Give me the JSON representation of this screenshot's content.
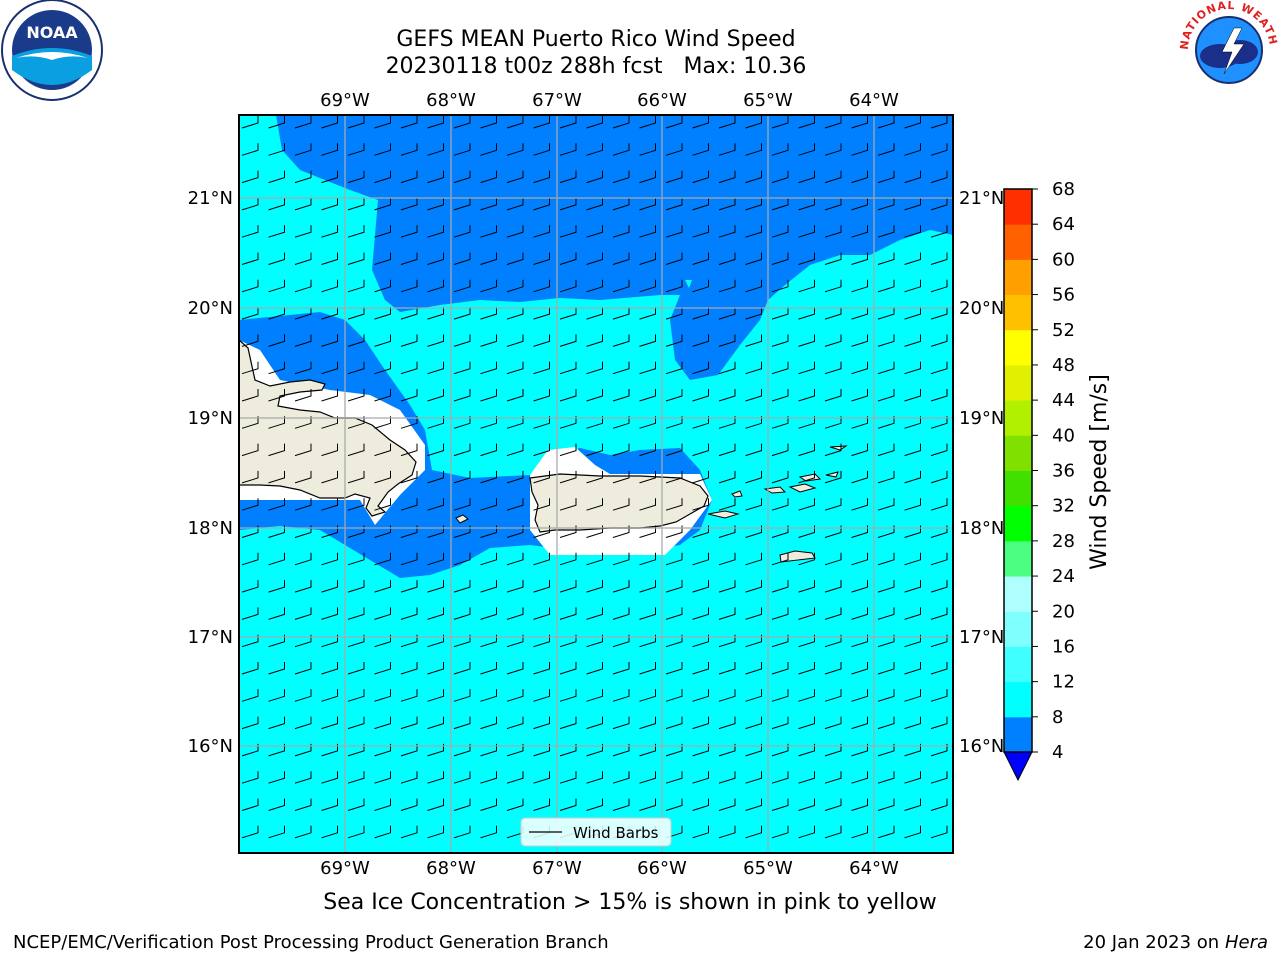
{
  "header": {
    "title": "GEFS MEAN Puerto Rico Wind Speed",
    "run": "20230118 t00z 288h fcst",
    "max_label": "Max: 10.36"
  },
  "logos": {
    "left_text": "NOAA",
    "right_text": "NATIONAL WEATHER SERVICE"
  },
  "map": {
    "lon_labels": [
      "69°W",
      "68°W",
      "67°W",
      "66°W",
      "65°W",
      "64°W"
    ],
    "lat_labels": [
      "21°N",
      "20°N",
      "19°N",
      "18°N",
      "17°N",
      "16°N"
    ],
    "legend_label": "Wind Barbs"
  },
  "colorbar": {
    "label": "Wind Speed [m/s]",
    "ticks": [
      "4",
      "8",
      "12",
      "16",
      "20",
      "24",
      "28",
      "32",
      "36",
      "40",
      "44",
      "48",
      "52",
      "56",
      "60",
      "64",
      "68"
    ],
    "colors": [
      "#0080ff",
      "#00ffff",
      "#40ffff",
      "#80ffff",
      "#b0ffff",
      "#4cff80",
      "#00ff00",
      "#40e000",
      "#80e000",
      "#b0f000",
      "#e0f000",
      "#ffff00",
      "#ffc000",
      "#ffa000",
      "#ff6000",
      "#ff3000",
      "#ff0000"
    ],
    "extend_color": "#0000ff"
  },
  "note": "Sea Ice Concentration > 15% is shown in pink to yellow",
  "footer": {
    "left": "NCEP/EMC/Verification Post Processing Product Generation Branch",
    "date": "20 Jan 2023 on ",
    "machine": "Hera"
  }
}
